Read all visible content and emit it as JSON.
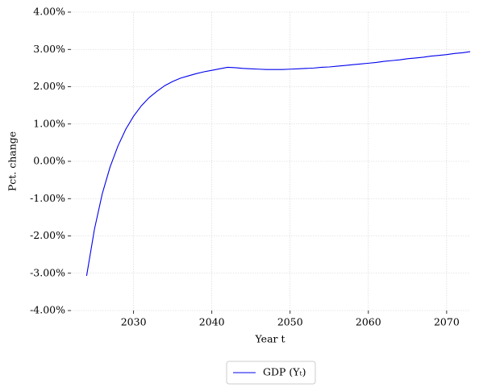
{
  "chart_data": {
    "type": "line",
    "x": [
      2024,
      2025,
      2026,
      2027,
      2028,
      2029,
      2030,
      2031,
      2032,
      2033,
      2034,
      2035,
      2036,
      2037,
      2038,
      2039,
      2040,
      2041,
      2042,
      2043,
      2044,
      2045,
      2046,
      2047,
      2048,
      2049,
      2050,
      2051,
      2052,
      2053,
      2054,
      2055,
      2056,
      2057,
      2058,
      2059,
      2060,
      2061,
      2062,
      2063,
      2064,
      2065,
      2066,
      2067,
      2068,
      2069,
      2070,
      2071,
      2072,
      2073
    ],
    "series": [
      {
        "name": "GDP (Yₜ)",
        "color": "#0000ee",
        "values": [
          -3.07,
          -1.82,
          -0.87,
          -0.15,
          0.41,
          0.86,
          1.21,
          1.49,
          1.71,
          1.88,
          2.03,
          2.14,
          2.23,
          2.29,
          2.35,
          2.4,
          2.44,
          2.48,
          2.52,
          2.51,
          2.49,
          2.48,
          2.47,
          2.46,
          2.46,
          2.46,
          2.47,
          2.48,
          2.49,
          2.5,
          2.52,
          2.53,
          2.55,
          2.57,
          2.59,
          2.61,
          2.63,
          2.65,
          2.68,
          2.7,
          2.72,
          2.75,
          2.77,
          2.79,
          2.82,
          2.84,
          2.86,
          2.89,
          2.91,
          2.94
        ]
      }
    ],
    "xlabel": "Year t",
    "ylabel": "Pct. change",
    "xlim": [
      2022,
      2073
    ],
    "xticks": [
      2030,
      2040,
      2050,
      2060,
      2070
    ],
    "ylim": [
      -4,
      4
    ],
    "yticks": [
      {
        "value": -4,
        "label": "-4.00%"
      },
      {
        "value": -3,
        "label": "-3.00%"
      },
      {
        "value": -2,
        "label": "-2.00%"
      },
      {
        "value": -1,
        "label": "-1.00%"
      },
      {
        "value": 0,
        "label": "0.00%"
      },
      {
        "value": 1,
        "label": "1.00%"
      },
      {
        "value": 2,
        "label": "2.00%"
      },
      {
        "value": 3,
        "label": "3.00%"
      },
      {
        "value": 4,
        "label": "4.00%"
      }
    ],
    "grid": true,
    "legend": "below"
  }
}
